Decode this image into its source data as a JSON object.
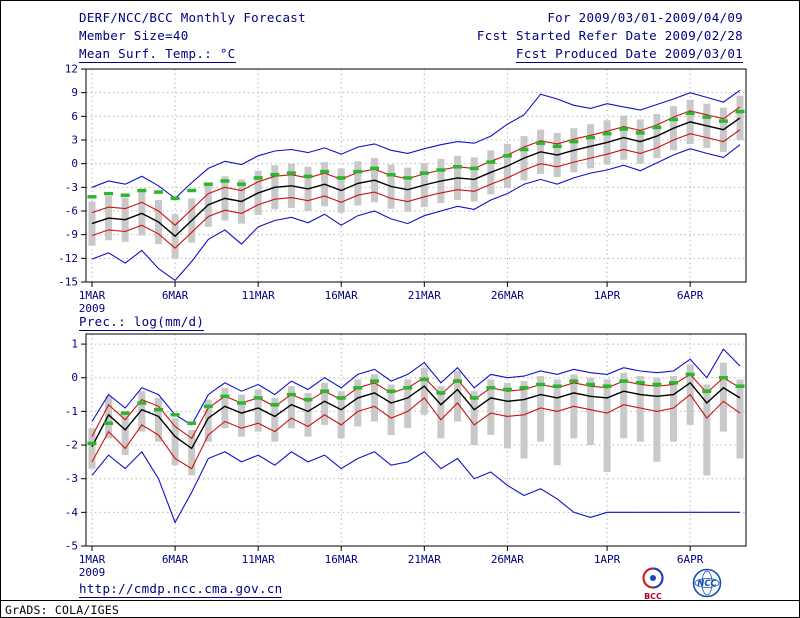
{
  "header": {
    "title": "DERF/NCC/BCC Monthly Forecast",
    "member_size": "Member Size=40",
    "for_range": "For 2009/03/01-2009/04/09",
    "fcst_started": "Fcst Started Refer Date 2009/02/28",
    "fcst_produced": "Fcst Produced Date 2009/03/01"
  },
  "footer": {
    "url": "http://cmdp.ncc.cma.gov.cn",
    "grads_credit": "GrADS: COLA/IGES"
  },
  "logos": {
    "bcc": "BCC",
    "ncc": "NCC"
  },
  "colors": {
    "text": "#000080",
    "frame": "#000000",
    "grid": "#b8b8b8",
    "bar": "#c9c9c9",
    "mean": "#000000",
    "quantile": "#cc1111",
    "extreme": "#1111cc",
    "obs": "#2db52d"
  },
  "chart_data": [
    {
      "id": "temp",
      "type": "line",
      "panel_label": "Mean Surf. Temp.: °C",
      "year": "2009",
      "n": 40,
      "xtick_idx": [
        0,
        5,
        10,
        15,
        20,
        25,
        31,
        36
      ],
      "xtick_labels": [
        "1MAR",
        "6MAR",
        "11MAR",
        "16MAR",
        "21MAR",
        "26MAR",
        "1APR",
        "6APR"
      ],
      "ylim": [
        -15,
        12
      ],
      "yticks": [
        -15,
        -12,
        -9,
        -6,
        -3,
        0,
        3,
        6,
        9,
        12
      ],
      "grid": true,
      "series": {
        "max": [
          -3.0,
          -2.2,
          -2.6,
          -1.6,
          -2.8,
          -4.4,
          -2.4,
          -0.6,
          0.3,
          -0.1,
          1.0,
          1.6,
          1.8,
          1.4,
          2.0,
          1.2,
          2.1,
          2.5,
          1.7,
          1.3,
          1.9,
          2.4,
          2.8,
          2.6,
          3.5,
          5.0,
          6.2,
          8.8,
          8.2,
          7.4,
          7.0,
          7.6,
          7.2,
          6.8,
          7.5,
          8.2,
          9.0,
          8.4,
          7.8,
          9.3
        ],
        "p75": [
          -6.2,
          -5.5,
          -5.7,
          -4.9,
          -6.0,
          -7.8,
          -5.8,
          -3.8,
          -3.0,
          -3.4,
          -2.3,
          -1.6,
          -1.4,
          -1.8,
          -1.2,
          -2.0,
          -1.1,
          -0.7,
          -1.5,
          -1.9,
          -1.3,
          -0.8,
          -0.4,
          -0.6,
          0.3,
          1.1,
          2.1,
          2.9,
          2.5,
          3.1,
          3.6,
          4.1,
          4.7,
          4.2,
          4.9,
          5.9,
          6.7,
          6.2,
          5.7,
          7.2
        ],
        "mean": [
          -7.6,
          -6.9,
          -7.1,
          -6.3,
          -7.4,
          -9.2,
          -7.2,
          -5.2,
          -4.4,
          -4.8,
          -3.7,
          -3.0,
          -2.8,
          -3.2,
          -2.6,
          -3.4,
          -2.5,
          -2.1,
          -2.9,
          -3.3,
          -2.7,
          -2.2,
          -1.8,
          -2.0,
          -1.1,
          -0.3,
          0.7,
          1.5,
          1.1,
          1.7,
          2.2,
          2.7,
          3.3,
          2.8,
          3.5,
          4.5,
          5.3,
          4.8,
          4.3,
          5.8
        ],
        "p25": [
          -9.1,
          -8.4,
          -8.6,
          -7.8,
          -8.9,
          -10.7,
          -8.7,
          -6.7,
          -5.9,
          -6.3,
          -5.2,
          -4.5,
          -4.3,
          -4.7,
          -4.1,
          -4.9,
          -4.0,
          -3.6,
          -4.4,
          -4.8,
          -4.2,
          -3.7,
          -3.3,
          -3.5,
          -2.6,
          -1.8,
          -0.8,
          0.0,
          -0.4,
          0.2,
          0.7,
          1.2,
          1.8,
          1.3,
          2.0,
          3.0,
          3.8,
          3.3,
          2.8,
          4.3
        ],
        "min": [
          -12.1,
          -11.3,
          -12.6,
          -11.0,
          -13.3,
          -14.8,
          -12.4,
          -9.6,
          -8.4,
          -10.2,
          -8.0,
          -7.2,
          -6.8,
          -7.5,
          -6.4,
          -7.8,
          -6.6,
          -6.0,
          -7.0,
          -7.6,
          -6.6,
          -6.0,
          -5.4,
          -5.8,
          -4.6,
          -3.8,
          -2.6,
          -2.0,
          -2.6,
          -1.8,
          -1.2,
          -0.8,
          -0.2,
          -0.9,
          0.1,
          1.1,
          1.9,
          1.3,
          0.8,
          2.4
        ],
        "obs_dash": [
          -4.2,
          -3.8,
          -4.0,
          -3.4,
          -3.6,
          -4.4,
          -3.4,
          -2.6,
          -2.2,
          -2.6,
          -1.8,
          -1.4,
          -1.2,
          -1.6,
          -1.0,
          -1.8,
          -1.0,
          -0.6,
          -1.4,
          -1.8,
          -1.2,
          -0.8,
          -0.4,
          -0.6,
          0.2,
          1.0,
          1.8,
          2.6,
          2.2,
          2.8,
          3.3,
          3.8,
          4.4,
          3.9,
          4.6,
          5.6,
          6.4,
          5.9,
          5.4,
          6.6
        ],
        "bar_top": [
          -4.8,
          -4.1,
          -4.3,
          -3.5,
          -4.6,
          -6.4,
          -4.4,
          -2.4,
          -1.6,
          -2.0,
          -0.9,
          -0.2,
          0.0,
          -0.4,
          0.2,
          -0.6,
          0.3,
          0.7,
          -0.1,
          -0.5,
          0.1,
          0.6,
          1.0,
          0.8,
          1.7,
          2.5,
          3.5,
          4.3,
          3.9,
          4.5,
          5.0,
          5.5,
          6.1,
          5.6,
          6.3,
          7.3,
          8.1,
          7.6,
          7.1,
          8.6
        ],
        "bar_bottom": [
          -10.4,
          -9.7,
          -9.9,
          -9.1,
          -10.2,
          -12.0,
          -10.0,
          -8.0,
          -7.2,
          -7.6,
          -6.5,
          -5.8,
          -5.6,
          -6.0,
          -5.4,
          -6.2,
          -5.3,
          -4.9,
          -5.7,
          -6.1,
          -5.5,
          -5.0,
          -4.6,
          -4.8,
          -3.9,
          -3.1,
          -2.1,
          -1.3,
          -1.7,
          -1.1,
          -0.6,
          -0.1,
          0.5,
          0.0,
          0.7,
          1.7,
          2.5,
          2.0,
          1.5,
          3.0
        ]
      }
    },
    {
      "id": "prec",
      "type": "line",
      "panel_label": "Prec.: log(mm/d)",
      "year": "2009",
      "n": 40,
      "xtick_idx": [
        0,
        5,
        10,
        15,
        20,
        25,
        31,
        36
      ],
      "xtick_labels": [
        "1MAR",
        "6MAR",
        "11MAR",
        "16MAR",
        "21MAR",
        "26MAR",
        "1APR",
        "6APR"
      ],
      "ylim": [
        -5,
        1.3
      ],
      "yticks": [
        -5,
        -4,
        -3,
        -2,
        -1,
        0,
        1
      ],
      "grid": true,
      "series": {
        "max": [
          -1.3,
          -0.5,
          -0.9,
          -0.3,
          -0.5,
          -1.1,
          -1.4,
          -0.5,
          -0.15,
          -0.4,
          -0.2,
          -0.5,
          -0.1,
          -0.35,
          0.0,
          -0.3,
          0.1,
          0.25,
          -0.1,
          0.1,
          0.45,
          -0.15,
          0.3,
          -0.3,
          0.1,
          0.0,
          0.05,
          0.2,
          0.1,
          0.25,
          0.15,
          0.1,
          0.3,
          0.2,
          0.15,
          0.2,
          0.55,
          0.0,
          0.85,
          0.35
        ],
        "p75": [
          -1.75,
          -0.8,
          -1.25,
          -0.65,
          -0.85,
          -1.45,
          -1.8,
          -0.9,
          -0.55,
          -0.75,
          -0.6,
          -0.85,
          -0.5,
          -0.7,
          -0.4,
          -0.65,
          -0.3,
          -0.15,
          -0.45,
          -0.3,
          0.0,
          -0.5,
          -0.05,
          -0.65,
          -0.3,
          -0.4,
          -0.35,
          -0.2,
          -0.3,
          -0.15,
          -0.25,
          -0.3,
          -0.1,
          -0.2,
          -0.25,
          -0.2,
          0.1,
          -0.45,
          0.0,
          -0.3
        ],
        "mean": [
          -2.05,
          -1.1,
          -1.55,
          -0.95,
          -1.15,
          -1.75,
          -2.1,
          -1.2,
          -0.85,
          -1.05,
          -0.9,
          -1.15,
          -0.8,
          -1.0,
          -0.7,
          -0.95,
          -0.6,
          -0.45,
          -0.75,
          -0.6,
          -0.25,
          -0.8,
          -0.35,
          -0.95,
          -0.6,
          -0.7,
          -0.65,
          -0.5,
          -0.6,
          -0.45,
          -0.55,
          -0.6,
          -0.4,
          -0.5,
          -0.55,
          -0.5,
          -0.15,
          -0.75,
          -0.3,
          -0.6
        ],
        "p25": [
          -2.5,
          -1.6,
          -2.1,
          -1.4,
          -1.7,
          -2.4,
          -2.7,
          -1.7,
          -1.3,
          -1.5,
          -1.35,
          -1.6,
          -1.2,
          -1.45,
          -1.1,
          -1.4,
          -1.0,
          -0.85,
          -1.2,
          -1.0,
          -0.6,
          -1.25,
          -0.75,
          -1.4,
          -1.05,
          -1.15,
          -1.1,
          -0.9,
          -1.0,
          -0.85,
          -0.95,
          -1.05,
          -0.8,
          -0.9,
          -1.0,
          -0.9,
          -0.5,
          -1.2,
          -0.7,
          -1.05
        ],
        "min": [
          -2.9,
          -2.3,
          -2.7,
          -2.2,
          -3.0,
          -4.3,
          -3.4,
          -2.4,
          -2.2,
          -2.5,
          -2.3,
          -2.6,
          -2.2,
          -2.5,
          -2.3,
          -2.7,
          -2.4,
          -2.2,
          -2.6,
          -2.5,
          -2.2,
          -2.7,
          -2.4,
          -3.0,
          -2.8,
          -3.2,
          -3.5,
          -3.3,
          -3.6,
          -4.0,
          -4.15,
          -4.0,
          -4.0,
          -4.0,
          -4.0,
          -4.0,
          -4.0,
          -4.0,
          -4.0,
          -4.0
        ],
        "obs_dash": [
          -1.95,
          -1.35,
          -1.05,
          -0.75,
          -0.95,
          -1.1,
          -1.35,
          -0.85,
          -0.55,
          -0.75,
          -0.6,
          -0.8,
          -0.5,
          -0.65,
          -0.4,
          -0.6,
          -0.3,
          -0.1,
          -0.4,
          -0.3,
          -0.05,
          -0.45,
          -0.1,
          -0.6,
          -0.3,
          -0.35,
          -0.3,
          -0.2,
          -0.25,
          -0.1,
          -0.2,
          -0.25,
          -0.1,
          -0.15,
          -0.2,
          -0.15,
          0.1,
          -0.4,
          0.0,
          -0.25
        ],
        "bar_top": [
          -1.5,
          -0.55,
          -1.0,
          -0.4,
          -0.6,
          -1.2,
          -1.55,
          -0.65,
          -0.3,
          -0.5,
          -0.35,
          -0.6,
          -0.25,
          -0.45,
          -0.15,
          -0.4,
          -0.05,
          0.1,
          -0.2,
          -0.05,
          0.3,
          -0.25,
          0.2,
          -0.4,
          -0.05,
          -0.15,
          -0.1,
          0.05,
          -0.05,
          0.1,
          0.0,
          -0.05,
          0.15,
          0.05,
          0.0,
          0.05,
          0.4,
          -0.2,
          0.45,
          -0.05
        ],
        "bar_bottom": [
          -2.7,
          -1.8,
          -2.3,
          -1.6,
          -1.9,
          -2.6,
          -2.9,
          -1.9,
          -1.5,
          -1.75,
          -1.6,
          -1.9,
          -1.5,
          -1.75,
          -1.4,
          -1.8,
          -1.45,
          -1.3,
          -1.7,
          -1.5,
          -1.1,
          -1.8,
          -1.3,
          -2.0,
          -1.7,
          -2.1,
          -2.4,
          -1.9,
          -2.6,
          -1.8,
          -2.0,
          -2.8,
          -1.8,
          -1.9,
          -2.5,
          -1.9,
          -1.4,
          -2.9,
          -1.6,
          -2.4
        ]
      }
    }
  ]
}
